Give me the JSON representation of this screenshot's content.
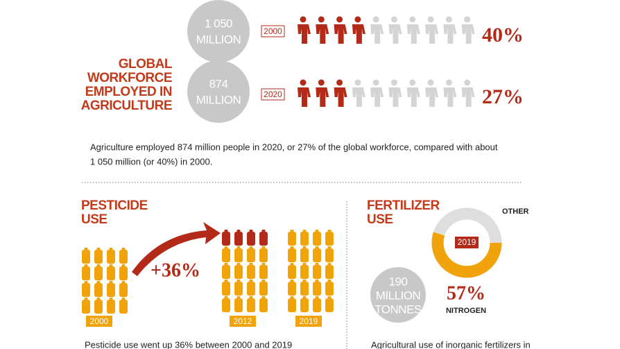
{
  "workforce": {
    "title": [
      "GLOBAL",
      "WORKFORCE",
      "EMPLOYED IN",
      "AGRICULTURE"
    ],
    "rows": [
      {
        "amount": [
          "1 050",
          "MILLION"
        ],
        "year": "2000",
        "share": "40%"
      },
      {
        "amount": [
          "874",
          "MILLION"
        ],
        "year": "2020",
        "share": "27%"
      }
    ],
    "note": [
      "Agriculture employed 874 million people in 2020, or 27% of the global workforce, compared with about",
      "1 050 million (or 40%) in 2000."
    ]
  },
  "pesticide": {
    "title": [
      "PESTICIDE",
      "USE"
    ],
    "change": "+36%",
    "years": [
      "2000",
      "2012",
      "2019"
    ],
    "note": "Pesticide use went up 36% between 2000 and 2019"
  },
  "fertilizer": {
    "title": [
      "FERTILIZER",
      "USE"
    ],
    "other_label": "OTHER",
    "year": "2019",
    "amount": [
      "190",
      "MILLION",
      "TONNES"
    ],
    "share": "57%",
    "share_label": "NITROGEN",
    "note": "Agricultural use of inorganic fertilizers in"
  }
}
